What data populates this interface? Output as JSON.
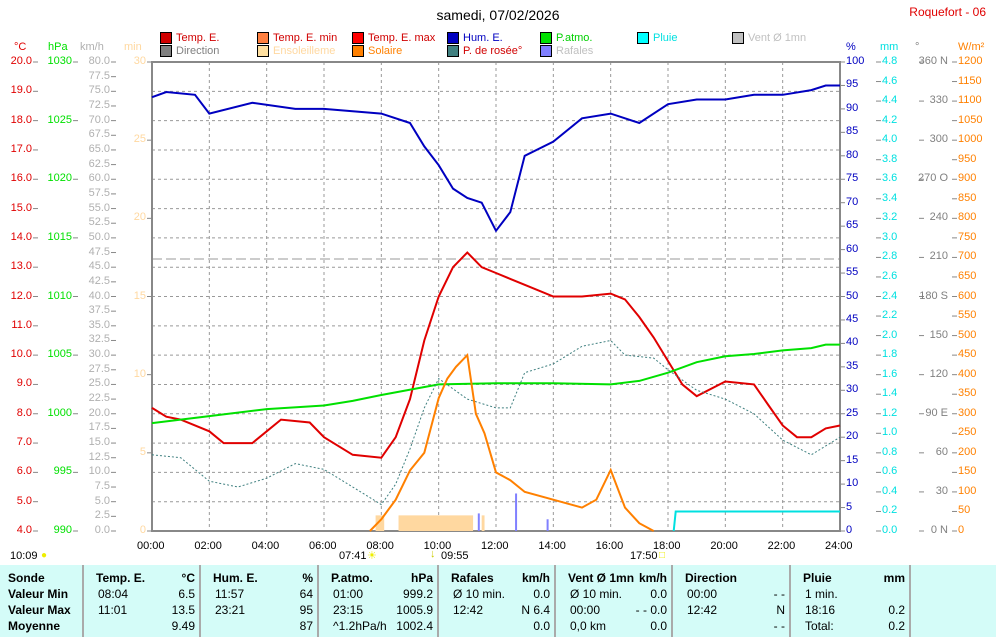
{
  "header": {
    "title": "samedi, 07/02/2026",
    "station": "Roquefort - 06"
  },
  "legend": [
    {
      "label": "Temp. E.",
      "color": "#d00000",
      "text": "#d00000"
    },
    {
      "label": "Temp. E. min",
      "color": "#ff8040",
      "text": "#d00000"
    },
    {
      "label": "Temp. E. max",
      "color": "#ff0000",
      "text": "#d00000"
    },
    {
      "label": "Hum. E.",
      "color": "#0000c0",
      "text": "#0000c0"
    },
    {
      "label": "P.atmo.",
      "color": "#00e000",
      "text": "#00d000"
    },
    {
      "label": "Pluie",
      "color": "#00ffff",
      "text": "#00e0e0"
    },
    {
      "label": "Vent Ø 1mn",
      "color": "#c0c0c0",
      "text": "#c0c0c0"
    },
    {
      "label": "Direction",
      "color": "#808080",
      "text": "#808080"
    },
    {
      "label": "Ensoleilleme",
      "color": "#ffe0a0",
      "text": "#ffd8a0"
    },
    {
      "label": "Solaire",
      "color": "#ff8000",
      "text": "#ff8000"
    },
    {
      "label": "P. de rosée°",
      "color": "#408080",
      "text": "#d00000"
    },
    {
      "label": "Rafales",
      "color": "#8080ff",
      "text": "#c0c0c0"
    }
  ],
  "sun": {
    "left": "10:09",
    "sunrise": "07:41",
    "mid": "09:55",
    "sunset": "17:50"
  },
  "chart_data": {
    "type": "line",
    "title": "samedi, 07/02/2026",
    "x_ticks": [
      "00:00",
      "02:00",
      "04:00",
      "06:00",
      "08:00",
      "10:00",
      "12:00",
      "14:00",
      "16:00",
      "18:00",
      "20:00",
      "22:00",
      "24:00"
    ],
    "xlim": [
      0,
      24
    ],
    "axes": {
      "temp": {
        "unit": "°C",
        "range": [
          4,
          20
        ],
        "step": 1,
        "dec": 1,
        "color": "#e00000"
      },
      "press": {
        "unit": "hPa",
        "range": [
          990,
          1030
        ],
        "step": 5,
        "dec": 0,
        "color": "#00e000"
      },
      "wind": {
        "unit": "km/h",
        "range": [
          0,
          80
        ],
        "step": 2.5,
        "dec": 1,
        "color": "#b0b0b0"
      },
      "sunmin": {
        "unit": "min",
        "range": [
          0,
          30
        ],
        "step": 5,
        "dec": 0,
        "color": "#ffd8a0"
      },
      "hum": {
        "unit": "%",
        "range": [
          0,
          100
        ],
        "step": 5,
        "dec": 0,
        "color": "#0000c0"
      },
      "rain": {
        "unit": "mm",
        "range": [
          0,
          4.8
        ],
        "step": 0.2,
        "dec": 1,
        "color": "#00e0e0"
      },
      "dir": {
        "unit": "°",
        "range": [
          0,
          360
        ],
        "step": 30,
        "dec": 0,
        "color": "#808080"
      },
      "solar": {
        "unit": "W/m²",
        "range": [
          0,
          1200
        ],
        "step": 50,
        "dec": 0,
        "color": "#ff8000"
      }
    },
    "dir_labels": {
      "0": "N",
      "90": "E",
      "180": "S",
      "270": "O",
      "360": "N"
    },
    "series": [
      {
        "name": "Temp. E.",
        "axis": "temp",
        "color": "#e00000",
        "x": [
          0,
          0.5,
          1,
          2,
          2.5,
          3.5,
          4,
          4.5,
          5.5,
          6,
          7,
          8,
          8.5,
          9,
          9.5,
          10,
          10.5,
          11,
          11.5,
          12,
          12.5,
          13,
          14,
          15,
          16,
          16.5,
          17,
          17.5,
          18,
          18.5,
          19,
          20,
          21,
          21.5,
          22,
          22.5,
          23,
          23.5,
          24
        ],
        "y": [
          8.2,
          7.9,
          7.8,
          7.4,
          7.0,
          7.0,
          7.4,
          7.8,
          7.7,
          7.2,
          6.6,
          6.5,
          7.2,
          8.5,
          10.5,
          12,
          13,
          13.5,
          13.0,
          12.8,
          12.6,
          12.4,
          12.0,
          12.0,
          12.1,
          11.9,
          11.3,
          10.6,
          9.8,
          9.0,
          8.6,
          9.1,
          9.0,
          8.3,
          7.6,
          7.2,
          7.2,
          7.5,
          7.6
        ]
      },
      {
        "name": "Hum. E.",
        "axis": "hum",
        "color": "#0000c0",
        "x": [
          0,
          0.5,
          1.5,
          2,
          3.5,
          5,
          6,
          8,
          9,
          9.5,
          10,
          10.5,
          11,
          11.5,
          12,
          12.5,
          13,
          14,
          15,
          16,
          17,
          18,
          19,
          20,
          21,
          22,
          23,
          23.5,
          24
        ],
        "y": [
          92.5,
          93.6,
          93,
          89,
          91.3,
          90,
          90,
          89,
          87,
          82,
          78,
          73,
          71,
          70,
          64,
          68,
          80,
          83,
          88,
          89,
          87,
          91,
          92,
          92,
          93,
          93,
          94,
          95,
          95
        ]
      },
      {
        "name": "P.atmo.",
        "axis": "press",
        "color": "#00e000",
        "x": [
          0,
          2,
          4,
          6,
          7,
          8,
          10,
          12,
          14,
          16,
          17,
          18,
          19,
          20,
          21,
          22,
          23,
          23.5,
          24
        ],
        "y": [
          999.2,
          999.8,
          1000.4,
          1000.7,
          1001.1,
          1001.6,
          1002.5,
          1002.6,
          1002.6,
          1002.5,
          1002.8,
          1003.5,
          1004.4,
          1004.9,
          1005.1,
          1005.4,
          1005.6,
          1005.9,
          1005.9
        ]
      },
      {
        "name": "P. de rosée",
        "axis": "temp",
        "color": "#408080",
        "dash": true,
        "x": [
          0,
          1,
          2,
          3,
          4,
          5,
          6,
          7,
          8,
          8.5,
          9,
          9.5,
          10,
          11,
          12,
          12.5,
          13,
          14,
          15,
          16,
          16.5,
          17.5,
          18,
          19,
          20,
          21,
          22,
          23,
          24
        ],
        "y": [
          6.6,
          6.5,
          5.7,
          5.5,
          5.8,
          6.3,
          6.1,
          5.5,
          4.9,
          5.6,
          6.8,
          8.2,
          9.2,
          8.5,
          8.2,
          8.2,
          9.4,
          9.7,
          10.3,
          10.5,
          10.0,
          9.9,
          9.5,
          8.8,
          8.5,
          8.0,
          7.1,
          6.6,
          7.2
        ]
      },
      {
        "name": "Solaire",
        "axis": "solar",
        "color": "#ff8000",
        "x": [
          7.6,
          8,
          8.5,
          9,
          9.5,
          10,
          10.3,
          10.6,
          11,
          11.3,
          11.6,
          12,
          12.5,
          13,
          14,
          15,
          15.5,
          16,
          16.5,
          17,
          17.5
        ],
        "y": [
          0,
          30,
          80,
          155,
          200,
          340,
          390,
          420,
          450,
          300,
          250,
          150,
          130,
          100,
          80,
          60,
          80,
          156,
          60,
          20,
          0
        ]
      },
      {
        "name": "Rain cumul",
        "axis": "rain",
        "color": "#00e0e0",
        "x": [
          18.2,
          18.27,
          24
        ],
        "y": [
          0,
          0.2,
          0.2
        ]
      }
    ],
    "sunshine_bars": {
      "axis": "sunmin",
      "color": "#ffd8a0",
      "intervals": [
        [
          7.8,
          8.1
        ],
        [
          8.6,
          11.2
        ],
        [
          11.5,
          11.6
        ]
      ],
      "value": 1
    },
    "gusts": {
      "axis": "wind",
      "color": "#8080ff",
      "x": [
        11.4,
        12.7,
        13.8
      ],
      "y": [
        3,
        6.4,
        2
      ]
    }
  },
  "table": {
    "cols": [
      {
        "h": [
          "Sonde",
          ""
        ],
        "r": [
          [
            "Valeur Min",
            ""
          ],
          [
            "Valeur Max",
            ""
          ],
          [
            "Moyenne",
            ""
          ]
        ],
        "bold": true
      },
      {
        "h": [
          "Temp. E.",
          "°C"
        ],
        "r": [
          [
            "08:04",
            "6.5"
          ],
          [
            "11:01",
            "13.5"
          ],
          [
            "",
            "9.49"
          ]
        ]
      },
      {
        "h": [
          "Hum. E.",
          "%"
        ],
        "r": [
          [
            "11:57",
            "64"
          ],
          [
            "23:21",
            "95"
          ],
          [
            "",
            "87"
          ]
        ]
      },
      {
        "h": [
          "P.atmo.",
          "hPa"
        ],
        "r": [
          [
            "01:00",
            "999.2"
          ],
          [
            "23:15",
            "1005.9"
          ],
          [
            "^1.2hPa/h",
            "1002.4"
          ]
        ]
      },
      {
        "h": [
          "Rafales",
          "km/h"
        ],
        "r": [
          [
            "Ø 10 min.",
            "0.0"
          ],
          [
            "12:42",
            "N 6.4"
          ],
          [
            "",
            "0.0"
          ]
        ]
      },
      {
        "h": [
          "Vent Ø 1mn",
          "km/h"
        ],
        "r": [
          [
            "Ø 10 min.",
            "0.0"
          ],
          [
            "00:00",
            "- - 0.0"
          ],
          [
            "0,0 km",
            "0.0"
          ]
        ]
      },
      {
        "h": [
          "Direction",
          ""
        ],
        "r": [
          [
            "00:00",
            "- -"
          ],
          [
            "12:42",
            "N"
          ],
          [
            "",
            "- -"
          ]
        ]
      },
      {
        "h": [
          "Pluie",
          "mm"
        ],
        "r": [
          [
            "1 min.",
            ""
          ],
          [
            "18:16",
            "0.2"
          ],
          [
            "Total:",
            "0.2"
          ]
        ]
      }
    ]
  }
}
